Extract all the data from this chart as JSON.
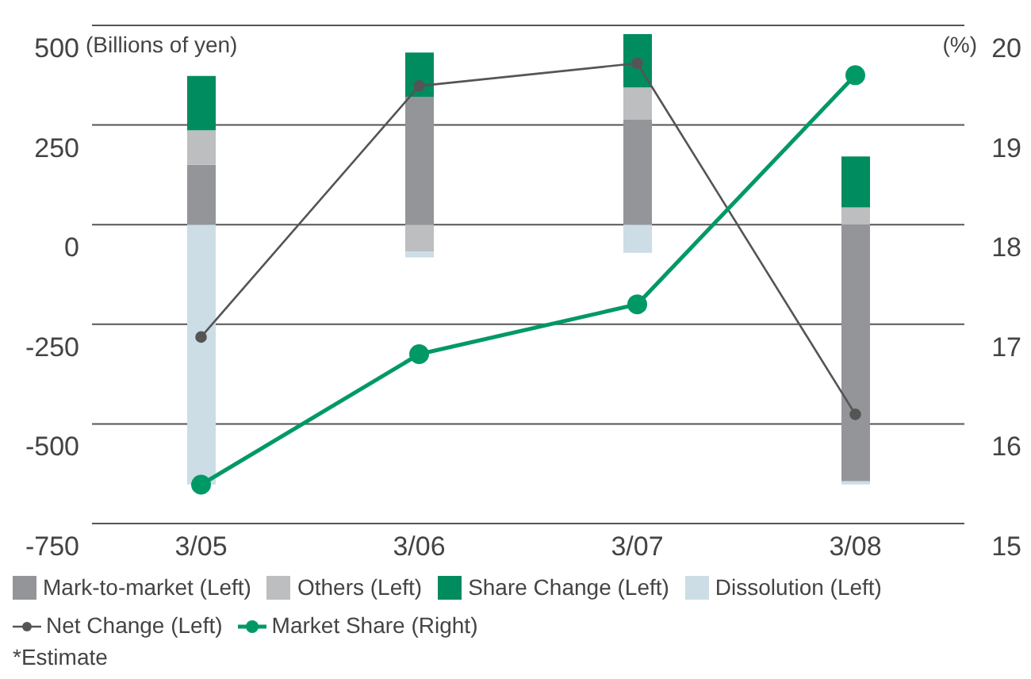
{
  "chart_data": {
    "type": "bar",
    "stacked": true,
    "ylabel": "(Billions of yen)",
    "y2label": "(%)",
    "categories": [
      "3/05",
      "3/06",
      "3/07",
      "3/08"
    ],
    "series": [
      {
        "name": "Mark-to-market (Left)",
        "color": "#939598",
        "values": [
          150,
          321,
          263,
          -644
        ]
      },
      {
        "name": "Others (Left)",
        "color": "#bcbec0",
        "values": [
          87,
          -68,
          81,
          43
        ]
      },
      {
        "name": "Share Change (Left)",
        "color": "#008c5f",
        "values": [
          136,
          111,
          134,
          128
        ]
      },
      {
        "name": "Dissolution (Left)",
        "color": "#ccdde6",
        "values": [
          -652,
          -14,
          -71,
          -8
        ]
      },
      {
        "name": "Net Change (Left)",
        "type": "line",
        "color": "#555555",
        "values": [
          -282,
          348,
          405,
          -476
        ]
      },
      {
        "name": "Market Share (Right)",
        "type": "line",
        "axis": "y2",
        "color": "#009966",
        "values": [
          15.39,
          16.7,
          17.2,
          19.5
        ]
      }
    ],
    "ylim": [
      -750,
      500
    ],
    "yticks": [
      -750,
      -500,
      -250,
      0,
      250,
      500
    ],
    "y2lim": [
      15,
      20
    ],
    "y2ticks": [
      15,
      16,
      17,
      18,
      19,
      20
    ],
    "grid": "y",
    "legend": "bottom",
    "marker": "circle",
    "line_style": "solid",
    "annotations": [
      "*Estimate"
    ]
  }
}
